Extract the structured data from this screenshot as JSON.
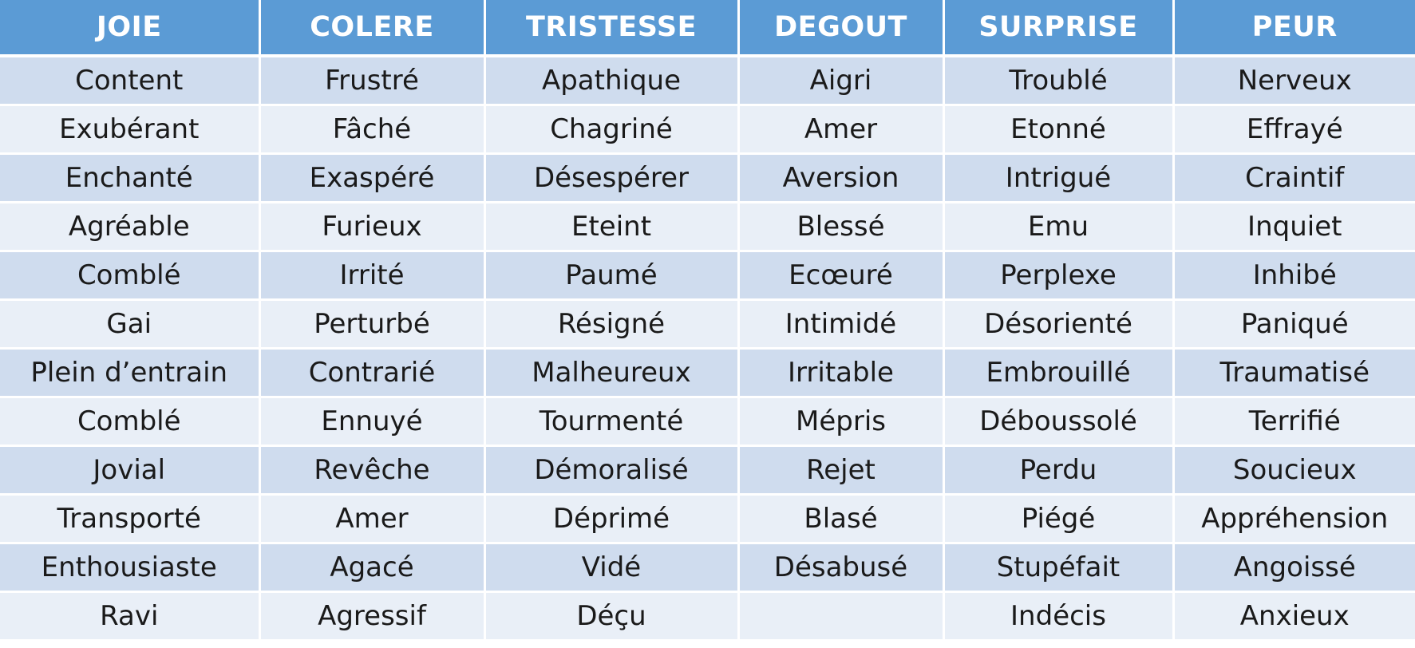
{
  "table": {
    "colors": {
      "header_bg": "#5b9bd5",
      "header_text": "#ffffff",
      "row_dark": "#cfdcee",
      "row_light": "#e9eff7",
      "cell_text": "#1a1a1a"
    },
    "headers": [
      "JOIE",
      "COLERE",
      "TRISTESSE",
      "DEGOUT",
      "SURPRISE",
      "PEUR"
    ],
    "rows": [
      [
        "Content",
        "Frustré",
        "Apathique",
        "Aigri",
        "Troublé",
        "Nerveux"
      ],
      [
        "Exubérant",
        "Fâché",
        "Chagriné",
        "Amer",
        "Etonné",
        "Effrayé"
      ],
      [
        "Enchanté",
        "Exaspéré",
        "Désespérer",
        "Aversion",
        "Intrigué",
        "Craintif"
      ],
      [
        "Agréable",
        "Furieux",
        "Eteint",
        "Blessé",
        "Emu",
        "Inquiet"
      ],
      [
        "Comblé",
        "Irrité",
        "Paumé",
        "Ecœuré",
        "Perplexe",
        "Inhibé"
      ],
      [
        "Gai",
        "Perturbé",
        "Résigné",
        "Intimidé",
        "Désorienté",
        "Paniqué"
      ],
      [
        "Plein d’entrain",
        "Contrarié",
        "Malheureux",
        "Irritable",
        "Embrouillé",
        "Traumatisé"
      ],
      [
        "Comblé",
        "Ennuyé",
        "Tourmenté",
        "Mépris",
        "Déboussolé",
        "Terrifié"
      ],
      [
        "Jovial",
        "Revêche",
        "Démoralisé",
        "Rejet",
        "Perdu",
        "Soucieux"
      ],
      [
        "Transporté",
        "Amer",
        "Déprimé",
        "Blasé",
        "Piégé",
        "Appréhension"
      ],
      [
        "Enthousiaste",
        "Agacé",
        "Vidé",
        "Désabusé",
        "Stupéfait",
        "Angoissé"
      ],
      [
        "Ravi",
        "Agressif",
        "Déçu",
        "",
        "Indécis",
        "Anxieux"
      ]
    ]
  }
}
